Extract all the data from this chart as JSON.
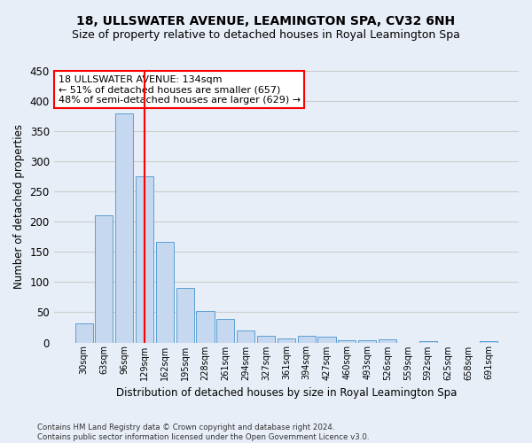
{
  "title": "18, ULLSWATER AVENUE, LEAMINGTON SPA, CV32 6NH",
  "subtitle": "Size of property relative to detached houses in Royal Leamington Spa",
  "xlabel": "Distribution of detached houses by size in Royal Leamington Spa",
  "ylabel": "Number of detached properties",
  "footer_line1": "Contains HM Land Registry data © Crown copyright and database right 2024.",
  "footer_line2": "Contains public sector information licensed under the Open Government Licence v3.0.",
  "categories": [
    "30sqm",
    "63sqm",
    "96sqm",
    "129sqm",
    "162sqm",
    "195sqm",
    "228sqm",
    "261sqm",
    "294sqm",
    "327sqm",
    "361sqm",
    "394sqm",
    "427sqm",
    "460sqm",
    "493sqm",
    "526sqm",
    "559sqm",
    "592sqm",
    "625sqm",
    "658sqm",
    "691sqm"
  ],
  "values": [
    31,
    210,
    380,
    275,
    167,
    91,
    52,
    39,
    20,
    11,
    6,
    11,
    10,
    4,
    4,
    5,
    0,
    2,
    0,
    0,
    2
  ],
  "bar_color": "#c5d8f0",
  "bar_edge_color": "#5a9fd4",
  "grid_color": "#cccccc",
  "bg_color": "#e8eef8",
  "vline_x": 3.0,
  "vline_color": "red",
  "annotation_line1": "18 ULLSWATER AVENUE: 134sqm",
  "annotation_line2": "← 51% of detached houses are smaller (657)",
  "annotation_line3": "48% of semi-detached houses are larger (629) →",
  "annotation_box_color": "white",
  "annotation_box_edge_color": "red",
  "ylim": [
    0,
    450
  ],
  "yticks": [
    0,
    50,
    100,
    150,
    200,
    250,
    300,
    350,
    400,
    450
  ],
  "title_fontsize": 10,
  "subtitle_fontsize": 9
}
